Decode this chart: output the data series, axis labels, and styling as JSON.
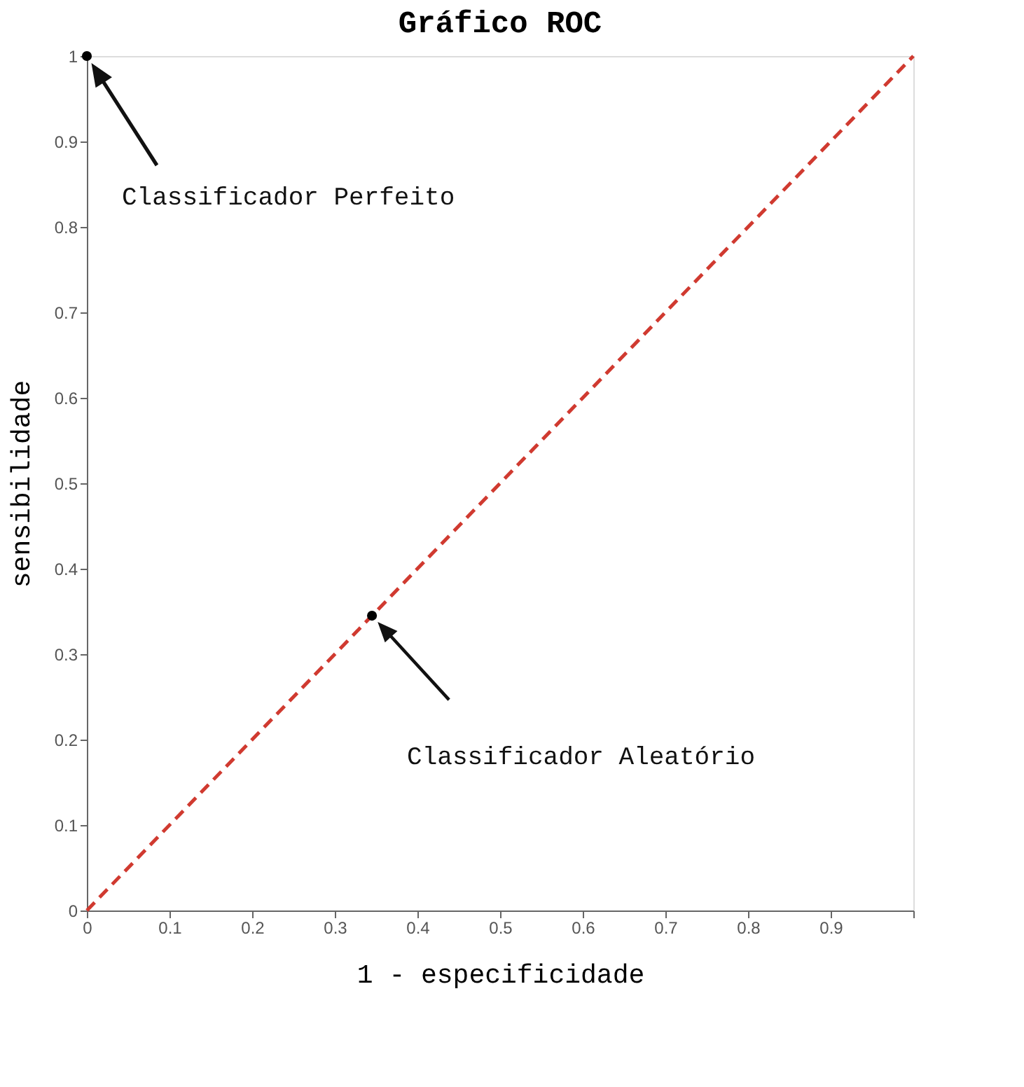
{
  "chart_data": {
    "type": "line",
    "title": "Gráfico ROC",
    "xlabel": "1 - especificidade",
    "ylabel": "sensibilidade",
    "series": [
      {
        "type": "line",
        "x": [
          0,
          1
        ],
        "values": [
          0,
          1
        ],
        "color": "#d03a30",
        "line_style": "dashed",
        "marker": "none"
      },
      {
        "type": "scatter",
        "x": [
          0,
          0.345
        ],
        "values": [
          1,
          0.345
        ],
        "color": "#000000",
        "marker": "circle"
      }
    ],
    "annotations": [
      "Classificador Perfeito",
      "Classificador Aleatório"
    ],
    "xlim": [
      0,
      1
    ],
    "ylim": [
      0,
      1
    ],
    "xticks": [
      0,
      0.1,
      0.2,
      0.3,
      0.4,
      0.5,
      0.6,
      0.7,
      0.8,
      0.9,
      {
        "value": 1,
        "label": null
      }
    ],
    "yticks": [
      0,
      0.1,
      0.2,
      0.3,
      0.4,
      0.5,
      0.6,
      0.7,
      0.8,
      0.9,
      1
    ],
    "grid": false
  }
}
